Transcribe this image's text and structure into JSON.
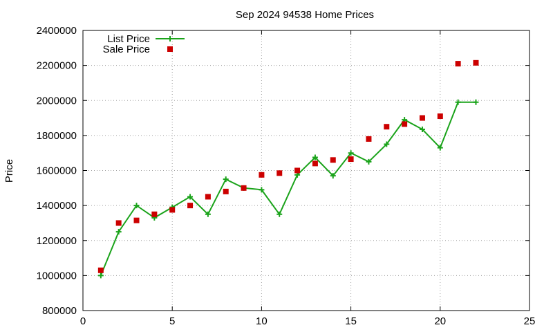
{
  "chart_data": {
    "type": "line",
    "title": "Sep 2024 94538 Home Prices",
    "xlabel": "",
    "ylabel": "Price",
    "xlim": [
      0,
      25
    ],
    "ylim": [
      800000,
      2400000
    ],
    "x_ticks": [
      "0",
      "5",
      "10",
      "15",
      "20",
      "25"
    ],
    "y_ticks": [
      "800000",
      "1000000",
      "1200000",
      "1400000",
      "1600000",
      "1800000",
      "2000000",
      "2200000",
      "2400000"
    ],
    "grid": true,
    "legend_position": "top-left",
    "series": [
      {
        "name": "List Price",
        "style": "line-points",
        "color": "#1aa31a",
        "x": [
          1,
          2,
          3,
          4,
          5,
          6,
          7,
          8,
          9,
          10,
          11,
          12,
          13,
          14,
          15,
          16,
          17,
          18,
          19,
          20,
          21,
          22
        ],
        "y": [
          1000000,
          1250000,
          1400000,
          1330000,
          1390000,
          1450000,
          1350000,
          1550000,
          1500000,
          1490000,
          1350000,
          1575000,
          1675000,
          1570000,
          1700000,
          1650000,
          1750000,
          1890000,
          1835000,
          1730000,
          1990000,
          1990000
        ]
      },
      {
        "name": "Sale Price",
        "style": "points",
        "color": "#cc0000",
        "x": [
          1,
          2,
          3,
          4,
          5,
          6,
          7,
          8,
          9,
          10,
          11,
          12,
          13,
          14,
          15,
          16,
          17,
          18,
          19,
          20,
          21,
          22
        ],
        "y": [
          1030000,
          1300000,
          1315000,
          1350000,
          1375000,
          1400000,
          1450000,
          1480000,
          1500000,
          1575000,
          1585000,
          1600000,
          1640000,
          1660000,
          1665000,
          1780000,
          1850000,
          1865000,
          1900000,
          1910000,
          2210000,
          2215000
        ]
      }
    ]
  }
}
